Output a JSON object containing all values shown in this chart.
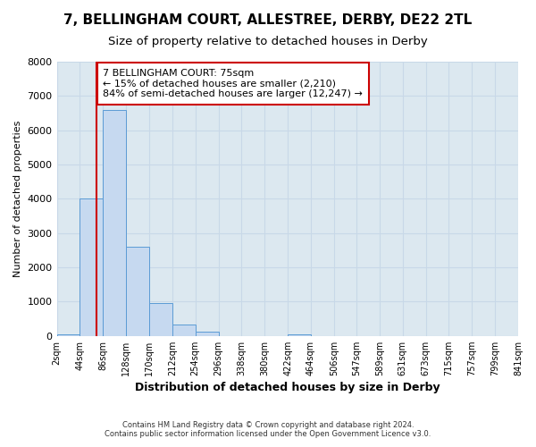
{
  "title": "7, BELLINGHAM COURT, ALLESTREE, DERBY, DE22 2TL",
  "subtitle": "Size of property relative to detached houses in Derby",
  "xlabel": "Distribution of detached houses by size in Derby",
  "ylabel": "Number of detached properties",
  "bin_edges": [
    2,
    44,
    86,
    128,
    170,
    212,
    254,
    296,
    338,
    380,
    422,
    464,
    506,
    547,
    589,
    631,
    673,
    715,
    757,
    799,
    841
  ],
  "bin_labels": [
    "2sqm",
    "44sqm",
    "86sqm",
    "128sqm",
    "170sqm",
    "212sqm",
    "254sqm",
    "296sqm",
    "338sqm",
    "380sqm",
    "422sqm",
    "464sqm",
    "506sqm",
    "547sqm",
    "589sqm",
    "631sqm",
    "673sqm",
    "715sqm",
    "757sqm",
    "799sqm",
    "841sqm"
  ],
  "counts": [
    50,
    4000,
    6600,
    2600,
    950,
    330,
    130,
    0,
    0,
    0,
    50,
    0,
    0,
    0,
    0,
    0,
    0,
    0,
    0,
    0
  ],
  "bar_facecolor": "#c6d9f0",
  "bar_edgecolor": "#5b9bd5",
  "ylim": [
    0,
    8000
  ],
  "yticks": [
    0,
    1000,
    2000,
    3000,
    4000,
    5000,
    6000,
    7000,
    8000
  ],
  "vline_x": 75,
  "vline_color": "#cc0000",
  "annotation_title": "7 BELLINGHAM COURT: 75sqm",
  "annotation_line1": "← 15% of detached houses are smaller (2,210)",
  "annotation_line2": "84% of semi-detached houses are larger (12,247) →",
  "annotation_box_color": "#cc0000",
  "annotation_bg": "#ffffff",
  "grid_color": "#c8d8e8",
  "plot_bg_color": "#dce8f0",
  "fig_bg_color": "#ffffff",
  "footer1": "Contains HM Land Registry data © Crown copyright and database right 2024.",
  "footer2": "Contains public sector information licensed under the Open Government Licence v3.0."
}
